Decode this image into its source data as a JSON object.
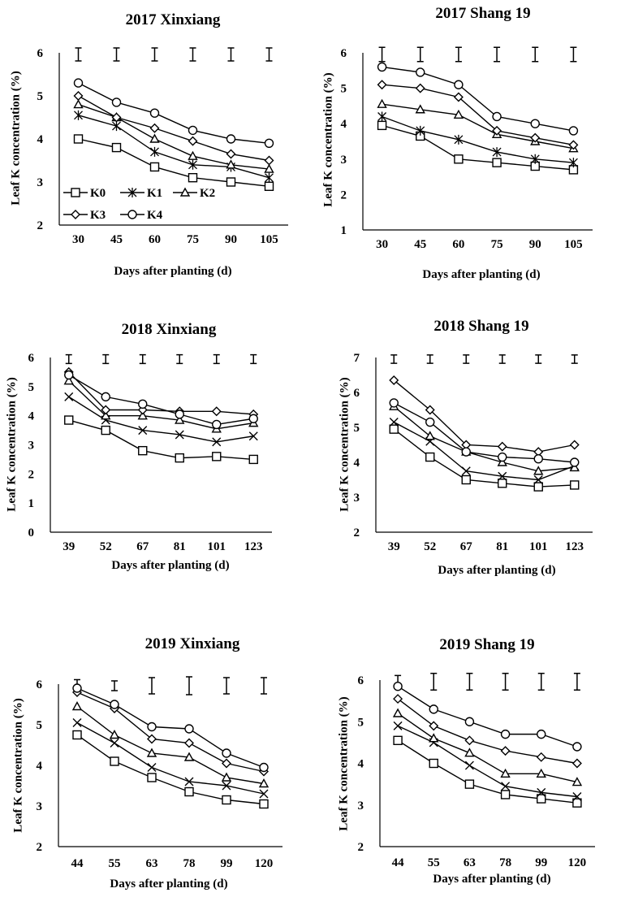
{
  "figure": {
    "series_names": [
      "K0",
      "K1",
      "K2",
      "K3",
      "K4"
    ],
    "series_markers": [
      "square-icon",
      "asterisk-icon",
      "triangle-icon",
      "diamond-icon",
      "circle-icon"
    ],
    "legend": [
      "K0",
      "K1",
      "K2",
      "K3",
      "K4"
    ]
  },
  "chart_data": [
    {
      "type": "line",
      "title": "2017 Xinxiang",
      "xlabel": "Days after planting (d)",
      "ylabel": "Leaf K concentration (%)",
      "categories": [
        "30",
        "45",
        "60",
        "75",
        "90",
        "105"
      ],
      "ylim": [
        2,
        6
      ],
      "yticks": [
        "2",
        "3",
        "4",
        "5",
        "6"
      ],
      "markers": [
        "square",
        "asterisk",
        "triangle",
        "diamond",
        "circle"
      ],
      "legend": [
        "K0",
        "K1",
        "K2",
        "K3",
        "K4"
      ],
      "error_bars": [
        0.15,
        0.15,
        0.15,
        0.15,
        0.15,
        0.15
      ],
      "series": [
        {
          "name": "K0",
          "values": [
            4.0,
            3.8,
            3.35,
            3.1,
            3.0,
            2.9
          ]
        },
        {
          "name": "K1",
          "values": [
            4.55,
            4.3,
            3.7,
            3.4,
            3.35,
            3.1
          ]
        },
        {
          "name": "K2",
          "values": [
            4.8,
            4.5,
            4.0,
            3.6,
            3.4,
            3.3
          ]
        },
        {
          "name": "K3",
          "values": [
            5.0,
            4.5,
            4.25,
            3.95,
            3.65,
            3.5
          ]
        },
        {
          "name": "K4",
          "values": [
            5.3,
            4.85,
            4.6,
            4.2,
            4.0,
            3.9
          ]
        }
      ]
    },
    {
      "type": "line",
      "title": "2017 Shang 19",
      "xlabel": "Days after planting (d)",
      "ylabel": "Leaf K concentration (%)",
      "categories": [
        "30",
        "45",
        "60",
        "75",
        "90",
        "105"
      ],
      "ylim": [
        1,
        6
      ],
      "yticks": [
        "1",
        "2",
        "3",
        "4",
        "5",
        "6"
      ],
      "markers": [
        "square",
        "asterisk",
        "triangle",
        "diamond",
        "circle"
      ],
      "error_bars": [
        0.2,
        0.2,
        0.2,
        0.2,
        0.2,
        0.2
      ],
      "series": [
        {
          "name": "K0",
          "values": [
            3.95,
            3.65,
            3.0,
            2.9,
            2.8,
            2.7
          ]
        },
        {
          "name": "K1",
          "values": [
            4.2,
            3.8,
            3.55,
            3.2,
            3.0,
            2.9
          ]
        },
        {
          "name": "K2",
          "values": [
            4.55,
            4.4,
            4.25,
            3.7,
            3.5,
            3.3
          ]
        },
        {
          "name": "K3",
          "values": [
            5.1,
            5.0,
            4.75,
            3.8,
            3.6,
            3.4
          ]
        },
        {
          "name": "K4",
          "values": [
            5.6,
            5.45,
            5.1,
            4.2,
            4.0,
            3.8
          ]
        }
      ]
    },
    {
      "type": "line",
      "title": "2018 Xinxiang",
      "xlabel": "Days after planting (d)",
      "ylabel": "Leaf K concentration (%)",
      "categories": [
        "39",
        "52",
        "67",
        "81",
        "101",
        "123"
      ],
      "ylim": [
        0,
        6
      ],
      "yticks": [
        "0",
        "1",
        "2",
        "3",
        "4",
        "5",
        "6"
      ],
      "markers": [
        "square",
        "cross",
        "triangle",
        "diamond",
        "circle"
      ],
      "error_bars": [
        0.15,
        0.15,
        0.15,
        0.15,
        0.15,
        0.15
      ],
      "series": [
        {
          "name": "K0",
          "values": [
            3.85,
            3.5,
            2.8,
            2.55,
            2.6,
            2.5
          ]
        },
        {
          "name": "K1",
          "values": [
            4.65,
            3.85,
            3.5,
            3.35,
            3.1,
            3.3
          ]
        },
        {
          "name": "K2",
          "values": [
            5.2,
            4.0,
            4.0,
            3.85,
            3.55,
            3.75
          ]
        },
        {
          "name": "K3",
          "values": [
            5.5,
            4.2,
            4.2,
            4.15,
            4.15,
            4.05
          ]
        },
        {
          "name": "K4",
          "values": [
            5.4,
            4.65,
            4.4,
            4.05,
            3.7,
            3.9
          ]
        }
      ]
    },
    {
      "type": "line",
      "title": "2018 Shang 19",
      "xlabel": "Days after planting (d)",
      "ylabel": "Leaf K concentration (%)",
      "categories": [
        "39",
        "52",
        "67",
        "81",
        "101",
        "123"
      ],
      "ylim": [
        2,
        7
      ],
      "yticks": [
        "2",
        "3",
        "4",
        "5",
        "6",
        "7"
      ],
      "markers": [
        "square",
        "cross",
        "triangle",
        "diamond",
        "circle"
      ],
      "error_bars": [
        0.12,
        0.12,
        0.12,
        0.12,
        0.12,
        0.12
      ],
      "series": [
        {
          "name": "K0",
          "values": [
            4.95,
            4.15,
            3.5,
            3.4,
            3.3,
            3.35
          ]
        },
        {
          "name": "K1",
          "values": [
            5.15,
            4.6,
            3.75,
            3.6,
            3.5,
            3.9
          ]
        },
        {
          "name": "K2",
          "values": [
            5.6,
            4.75,
            4.3,
            4.0,
            3.75,
            3.85
          ]
        },
        {
          "name": "K3",
          "values": [
            6.35,
            5.5,
            4.5,
            4.45,
            4.3,
            4.5
          ]
        },
        {
          "name": "K4",
          "values": [
            5.7,
            5.15,
            4.3,
            4.15,
            4.1,
            4.0
          ]
        }
      ]
    },
    {
      "type": "line",
      "title": "2019 Xinxiang",
      "xlabel": "Days after planting (d)",
      "ylabel": "Leaf K concentration (%)",
      "categories": [
        "44",
        "55",
        "63",
        "78",
        "99",
        "120"
      ],
      "ylim": [
        2,
        6
      ],
      "yticks": [
        "2",
        "3",
        "4",
        "5",
        "6"
      ],
      "markers": [
        "square",
        "cross",
        "triangle",
        "diamond",
        "circle"
      ],
      "error_bars": [
        0.15,
        0.12,
        0.2,
        0.22,
        0.2,
        0.2
      ],
      "series": [
        {
          "name": "K0",
          "values": [
            4.75,
            4.1,
            3.7,
            3.35,
            3.15,
            3.05
          ]
        },
        {
          "name": "K1",
          "values": [
            5.05,
            4.55,
            3.95,
            3.6,
            3.5,
            3.3
          ]
        },
        {
          "name": "K2",
          "values": [
            5.45,
            4.75,
            4.3,
            4.2,
            3.7,
            3.55
          ]
        },
        {
          "name": "K3",
          "values": [
            5.8,
            5.4,
            4.65,
            4.55,
            4.05,
            3.85
          ]
        },
        {
          "name": "K4",
          "values": [
            5.9,
            5.5,
            4.95,
            4.9,
            4.3,
            3.95
          ]
        }
      ]
    },
    {
      "type": "line",
      "title": "2019 Shang 19",
      "xlabel": "Days after planting (d)",
      "ylabel": "Leaf K concentration (%)",
      "categories": [
        "44",
        "55",
        "63",
        "78",
        "99",
        "120"
      ],
      "ylim": [
        2,
        6
      ],
      "yticks": [
        "2",
        "3",
        "4",
        "5",
        "6"
      ],
      "markers": [
        "square",
        "cross",
        "triangle",
        "diamond",
        "circle"
      ],
      "error_bars": [
        0.15,
        0.2,
        0.2,
        0.2,
        0.2,
        0.2
      ],
      "series": [
        {
          "name": "K0",
          "values": [
            4.55,
            4.0,
            3.5,
            3.25,
            3.15,
            3.05
          ]
        },
        {
          "name": "K1",
          "values": [
            4.9,
            4.5,
            3.95,
            3.45,
            3.3,
            3.2
          ]
        },
        {
          "name": "K2",
          "values": [
            5.2,
            4.6,
            4.25,
            3.75,
            3.75,
            3.55
          ]
        },
        {
          "name": "K3",
          "values": [
            5.55,
            4.9,
            4.55,
            4.3,
            4.15,
            4.0
          ]
        },
        {
          "name": "K4",
          "values": [
            5.85,
            5.3,
            5.0,
            4.7,
            4.7,
            4.4
          ]
        }
      ]
    }
  ]
}
